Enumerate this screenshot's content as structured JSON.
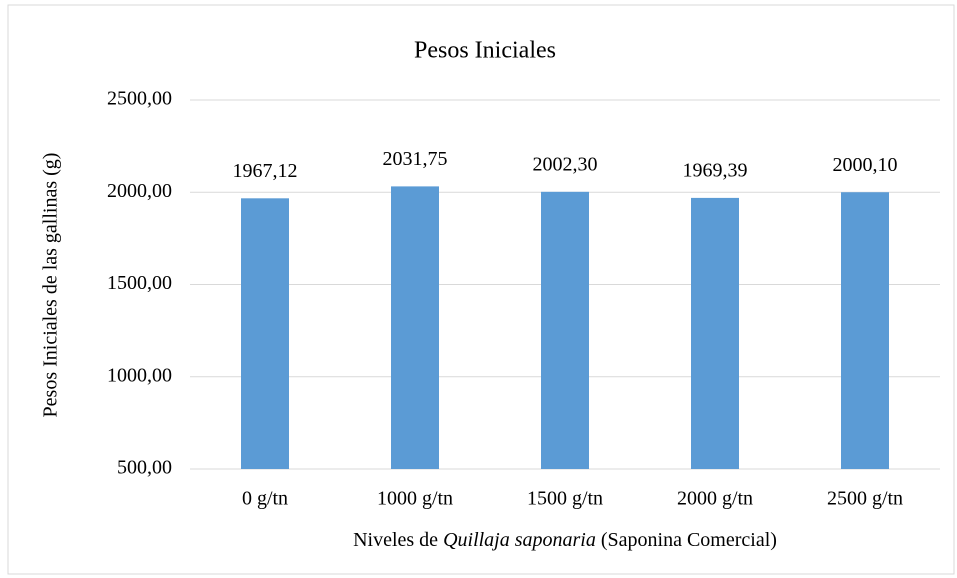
{
  "chart_data": {
    "type": "bar",
    "title": "Pesos Iniciales",
    "xlabel": [
      "Niveles de ",
      "Quillaja saponaria",
      " (Saponina Comercial)"
    ],
    "ylabel": "Pesos Iniciales de las gallinas (g)",
    "categories": [
      "0 g/tn",
      "1000 g/tn",
      "1500 g/tn",
      "2000 g/tn",
      "2500 g/tn"
    ],
    "values": [
      1967.12,
      2031.75,
      2002.3,
      1969.39,
      2000.1
    ],
    "value_labels": [
      "1967,12",
      "2031,75",
      "2002,30",
      "1969,39",
      "2000,10"
    ],
    "color": "#5b9bd5",
    "ylim": [
      500,
      2500
    ],
    "yticks": [
      {
        "value": 500,
        "label": "500,00"
      },
      {
        "value": 1000,
        "label": "1000,00"
      },
      {
        "value": 1500,
        "label": "1500,00"
      },
      {
        "value": 2000,
        "label": "2000,00"
      },
      {
        "value": 2500,
        "label": "2500,00"
      }
    ],
    "grid": true
  }
}
